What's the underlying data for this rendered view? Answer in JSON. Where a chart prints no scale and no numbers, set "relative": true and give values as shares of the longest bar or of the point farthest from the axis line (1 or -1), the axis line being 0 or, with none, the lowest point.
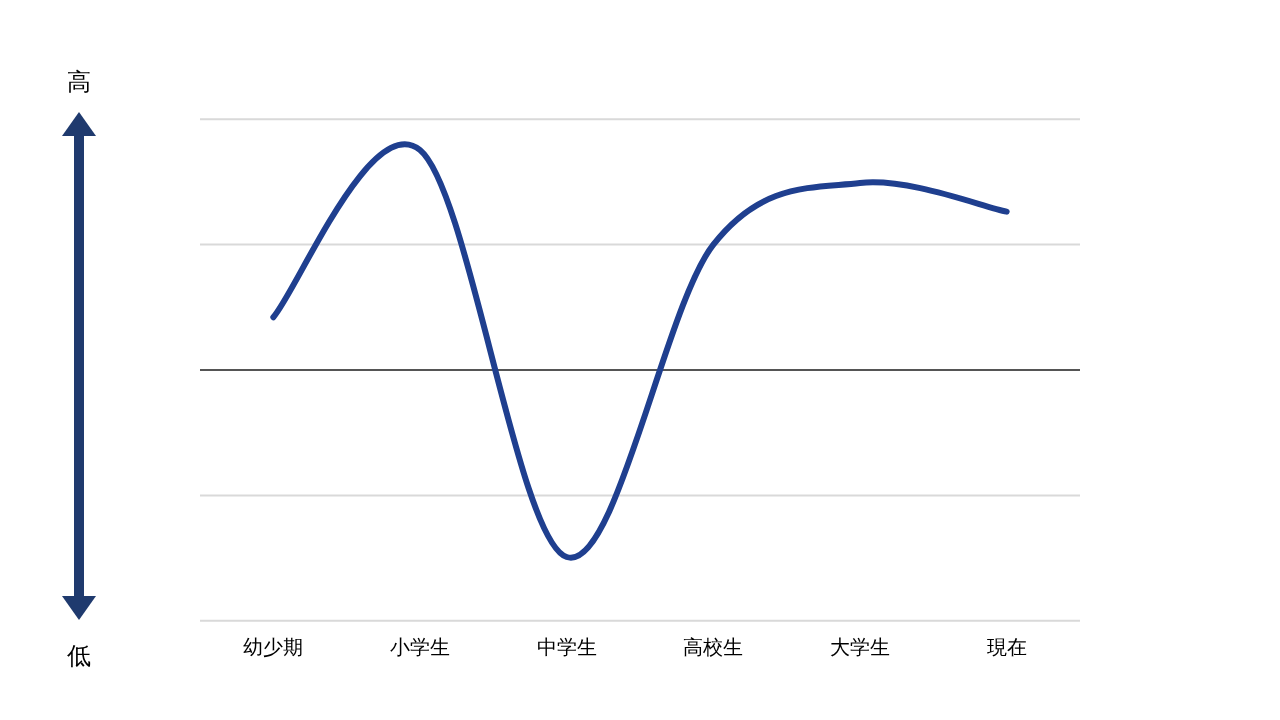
{
  "chart_data": {
    "type": "line",
    "relative": true,
    "categories": [
      "幼少期",
      "小学生",
      "中学生",
      "高校生",
      "大学生",
      "現在"
    ],
    "series": [
      {
        "color": "#1f3f8f",
        "values": [
          0.24,
          1,
          -0.85,
          0.57,
          0.85,
          0.72
        ]
      }
    ],
    "ref_lines": [
      {
        "axis": "y",
        "value": 1.14,
        "color": "#d9d9d9"
      },
      {
        "axis": "y",
        "value": 0.57,
        "color": "#d9d9d9"
      },
      {
        "axis": "y",
        "value": -0.57,
        "color": "#d9d9d9"
      },
      {
        "axis": "y",
        "value": -1.14,
        "color": "#d9d9d9"
      }
    ],
    "marker": "none",
    "line_style": "solid",
    "annotations": [
      "高",
      "低"
    ]
  }
}
